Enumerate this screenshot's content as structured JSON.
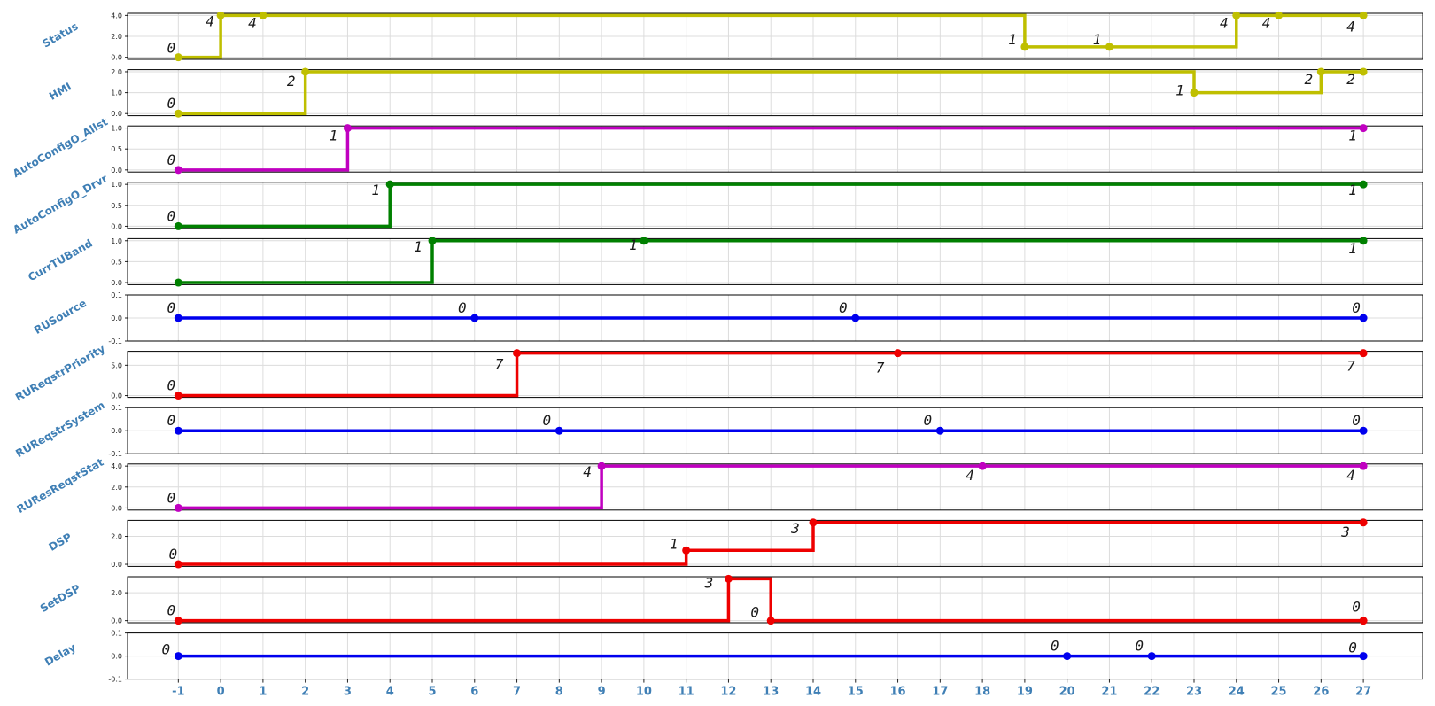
{
  "chart_data": {
    "type": "line",
    "step": true,
    "x_ticks": [
      "-1",
      "0",
      "1",
      "2",
      "3",
      "4",
      "5",
      "6",
      "7",
      "8",
      "9",
      "10",
      "11",
      "12",
      "13",
      "14",
      "15",
      "16",
      "17",
      "18",
      "19",
      "20",
      "21",
      "22",
      "23",
      "24",
      "25",
      "26",
      "27"
    ],
    "xlim": [
      -2.2,
      28.4
    ],
    "grid": true,
    "panels": [
      {
        "name": "Status",
        "color": "#bfbf00",
        "ylim": [
          -0.2,
          4.2
        ],
        "yticks": [
          "0.0",
          "2.0",
          "4.0"
        ],
        "ytick_values": [
          0,
          2,
          4
        ],
        "points": [
          [
            -1,
            0
          ],
          [
            0,
            4
          ],
          [
            1,
            4
          ],
          [
            19,
            1
          ],
          [
            21,
            1
          ],
          [
            24,
            4
          ],
          [
            25,
            4
          ],
          [
            27,
            4
          ]
        ],
        "labels": [
          {
            "x": -1,
            "y": 0,
            "text": "0",
            "dx": -8,
            "dy": -5
          },
          {
            "x": 0,
            "y": 4,
            "text": "4",
            "dx": -12,
            "dy": 12
          },
          {
            "x": 1,
            "y": 4,
            "text": "4",
            "dx": -12,
            "dy": 14
          },
          {
            "x": 19,
            "y": 1,
            "text": "1",
            "dx": -14,
            "dy": -3
          },
          {
            "x": 21,
            "y": 1,
            "text": "1",
            "dx": -14,
            "dy": -3
          },
          {
            "x": 24,
            "y": 4,
            "text": "4",
            "dx": -14,
            "dy": 14
          },
          {
            "x": 25,
            "y": 4,
            "text": "4",
            "dx": -14,
            "dy": 14
          },
          {
            "x": 27,
            "y": 4,
            "text": "4",
            "dx": -14,
            "dy": 18
          }
        ]
      },
      {
        "name": "HMI",
        "color": "#bfbf00",
        "ylim": [
          -0.1,
          2.1
        ],
        "yticks": [
          "0.0",
          "1.0",
          "2.0"
        ],
        "ytick_values": [
          0,
          1,
          2
        ],
        "points": [
          [
            -1,
            0
          ],
          [
            2,
            2
          ],
          [
            23,
            1
          ],
          [
            26,
            2
          ],
          [
            27,
            2
          ]
        ],
        "labels": [
          {
            "x": -1,
            "y": 0,
            "text": "0",
            "dx": -8,
            "dy": -6
          },
          {
            "x": 2,
            "y": 2,
            "text": "2",
            "dx": -16,
            "dy": 16
          },
          {
            "x": 23,
            "y": 1,
            "text": "1",
            "dx": -16,
            "dy": 3
          },
          {
            "x": 26,
            "y": 2,
            "text": "2",
            "dx": -14,
            "dy": 14
          },
          {
            "x": 27,
            "y": 2,
            "text": "2",
            "dx": -14,
            "dy": 14
          }
        ]
      },
      {
        "name": "AutoConfigO_Allst",
        "color": "#c000c0",
        "ylim": [
          -0.05,
          1.05
        ],
        "yticks": [
          "0.0",
          "0.5",
          "1.0"
        ],
        "ytick_values": [
          0,
          0.5,
          1
        ],
        "points": [
          [
            -1,
            0
          ],
          [
            3,
            1
          ],
          [
            27,
            1
          ]
        ],
        "labels": [
          {
            "x": -1,
            "y": 0,
            "text": "0",
            "dx": -8,
            "dy": -6
          },
          {
            "x": 3,
            "y": 1,
            "text": "1",
            "dx": -16,
            "dy": 14
          },
          {
            "x": 27,
            "y": 1,
            "text": "1",
            "dx": -12,
            "dy": 14
          }
        ]
      },
      {
        "name": "AutoConfigO_Drvr",
        "color": "#008000",
        "ylim": [
          -0.05,
          1.05
        ],
        "yticks": [
          "0.0",
          "0.5",
          "1.0"
        ],
        "ytick_values": [
          0,
          0.5,
          1
        ],
        "points": [
          [
            -1,
            0
          ],
          [
            4,
            1
          ],
          [
            27,
            1
          ]
        ],
        "labels": [
          {
            "x": -1,
            "y": 0,
            "text": "0",
            "dx": -8,
            "dy": -6
          },
          {
            "x": 4,
            "y": 1,
            "text": "1",
            "dx": -16,
            "dy": 12
          },
          {
            "x": 27,
            "y": 1,
            "text": "1",
            "dx": -12,
            "dy": 12
          }
        ]
      },
      {
        "name": "CurrTUBand",
        "color": "#008000",
        "ylim": [
          -0.05,
          1.05
        ],
        "yticks": [
          "0.0",
          "0.5",
          "1.0"
        ],
        "ytick_values": [
          0,
          0.5,
          1
        ],
        "points": [
          [
            -1,
            0
          ],
          [
            5,
            1
          ],
          [
            10,
            1
          ],
          [
            27,
            1
          ]
        ],
        "labels": [
          {
            "x": 5,
            "y": 1,
            "text": "1",
            "dx": -16,
            "dy": 12
          },
          {
            "x": 10,
            "y": 1,
            "text": "1",
            "dx": -12,
            "dy": 10
          },
          {
            "x": 27,
            "y": 1,
            "text": "1",
            "dx": -12,
            "dy": 14
          }
        ]
      },
      {
        "name": "RUSource",
        "color": "#0000ee",
        "ylim": [
          -0.1,
          0.1
        ],
        "yticks": [
          "-0.1",
          "0.0",
          "0.1"
        ],
        "ytick_values": [
          -0.1,
          0,
          0.1
        ],
        "points": [
          [
            -1,
            0
          ],
          [
            6,
            0
          ],
          [
            15,
            0
          ],
          [
            27,
            0
          ]
        ],
        "labels": [
          {
            "x": -1,
            "y": 0,
            "text": "0",
            "dx": -8,
            "dy": -6
          },
          {
            "x": 6,
            "y": 0,
            "text": "0",
            "dx": -14,
            "dy": -6
          },
          {
            "x": 15,
            "y": 0,
            "text": "0",
            "dx": -14,
            "dy": -6
          },
          {
            "x": 27,
            "y": 0,
            "text": "0",
            "dx": -8,
            "dy": -6
          }
        ]
      },
      {
        "name": "RUReqstrPriority",
        "color": "#ee0000",
        "ylim": [
          -0.3,
          7.3
        ],
        "yticks": [
          "0.0",
          "5.0"
        ],
        "ytick_values": [
          0,
          5
        ],
        "points": [
          [
            -1,
            0
          ],
          [
            7,
            7
          ],
          [
            16,
            7
          ],
          [
            27,
            7
          ]
        ],
        "labels": [
          {
            "x": -1,
            "y": 0,
            "text": "0",
            "dx": -8,
            "dy": -6
          },
          {
            "x": 7,
            "y": 7,
            "text": "7",
            "dx": -20,
            "dy": 18
          },
          {
            "x": 16,
            "y": 7,
            "text": "7",
            "dx": -20,
            "dy": 22
          },
          {
            "x": 27,
            "y": 7,
            "text": "7",
            "dx": -14,
            "dy": 20
          }
        ]
      },
      {
        "name": "RUReqstrSystem",
        "color": "#0000ee",
        "ylim": [
          -0.1,
          0.1
        ],
        "yticks": [
          "-0.1",
          "0.0",
          "0.1"
        ],
        "ytick_values": [
          -0.1,
          0,
          0.1
        ],
        "points": [
          [
            -1,
            0
          ],
          [
            8,
            0
          ],
          [
            17,
            0
          ],
          [
            27,
            0
          ]
        ],
        "labels": [
          {
            "x": -1,
            "y": 0,
            "text": "0",
            "dx": -8,
            "dy": -6
          },
          {
            "x": 8,
            "y": 0,
            "text": "0",
            "dx": -14,
            "dy": -6
          },
          {
            "x": 17,
            "y": 0,
            "text": "0",
            "dx": -14,
            "dy": -6
          },
          {
            "x": 27,
            "y": 0,
            "text": "0",
            "dx": -8,
            "dy": -6
          }
        ]
      },
      {
        "name": "RUResReqstStat",
        "color": "#c000c0",
        "ylim": [
          -0.2,
          4.2
        ],
        "yticks": [
          "0.0",
          "2.0",
          "4.0"
        ],
        "ytick_values": [
          0,
          2,
          4
        ],
        "points": [
          [
            -1,
            0
          ],
          [
            9,
            4
          ],
          [
            18,
            4
          ],
          [
            27,
            4
          ]
        ],
        "labels": [
          {
            "x": -1,
            "y": 0,
            "text": "0",
            "dx": -8,
            "dy": -6
          },
          {
            "x": 9,
            "y": 4,
            "text": "4",
            "dx": -16,
            "dy": 12
          },
          {
            "x": 18,
            "y": 4,
            "text": "4",
            "dx": -14,
            "dy": 16
          },
          {
            "x": 27,
            "y": 4,
            "text": "4",
            "dx": -14,
            "dy": 16
          }
        ]
      },
      {
        "name": "DSP",
        "color": "#ee0000",
        "ylim": [
          -0.15,
          3.15
        ],
        "yticks": [
          "0.0",
          "2.0"
        ],
        "ytick_values": [
          0,
          2
        ],
        "points": [
          [
            -1,
            0
          ],
          [
            11,
            1
          ],
          [
            14,
            3
          ],
          [
            27,
            3
          ]
        ],
        "labels": [
          {
            "x": -1,
            "y": 0,
            "text": "0",
            "dx": -6,
            "dy": -6
          },
          {
            "x": 11,
            "y": 1,
            "text": "1",
            "dx": -14,
            "dy": -2
          },
          {
            "x": 14,
            "y": 3,
            "text": "3",
            "dx": -20,
            "dy": 12
          },
          {
            "x": 27,
            "y": 3,
            "text": "3",
            "dx": -20,
            "dy": 16
          }
        ]
      },
      {
        "name": "SetDSP",
        "color": "#ee0000",
        "ylim": [
          -0.15,
          3.15
        ],
        "yticks": [
          "0.0",
          "2.0"
        ],
        "ytick_values": [
          0,
          2
        ],
        "points": [
          [
            -1,
            0
          ],
          [
            12,
            3
          ],
          [
            13,
            0
          ],
          [
            27,
            0
          ]
        ],
        "labels": [
          {
            "x": -1,
            "y": 0,
            "text": "0",
            "dx": -8,
            "dy": -6
          },
          {
            "x": 12,
            "y": 3,
            "text": "3",
            "dx": -22,
            "dy": 10
          },
          {
            "x": 13,
            "y": 0,
            "text": "0",
            "dx": -18,
            "dy": -4
          },
          {
            "x": 27,
            "y": 0,
            "text": "0",
            "dx": -8,
            "dy": -10
          }
        ]
      },
      {
        "name": "Delay",
        "color": "#0000ee",
        "ylim": [
          -0.1,
          0.1
        ],
        "yticks": [
          "-0.1",
          "0.0",
          "0.1"
        ],
        "ytick_values": [
          -0.1,
          0,
          0.1
        ],
        "points": [
          [
            -1,
            0
          ],
          [
            20,
            0
          ],
          [
            22,
            0
          ],
          [
            27,
            0
          ]
        ],
        "labels": [
          {
            "x": -1,
            "y": 0,
            "text": "0",
            "dx": -14,
            "dy": -2
          },
          {
            "x": 20,
            "y": 0,
            "text": "0",
            "dx": -14,
            "dy": -6
          },
          {
            "x": 22,
            "y": 0,
            "text": "0",
            "dx": -14,
            "dy": -6
          },
          {
            "x": 27,
            "y": 0,
            "text": "0",
            "dx": -12,
            "dy": -4
          }
        ]
      }
    ]
  }
}
